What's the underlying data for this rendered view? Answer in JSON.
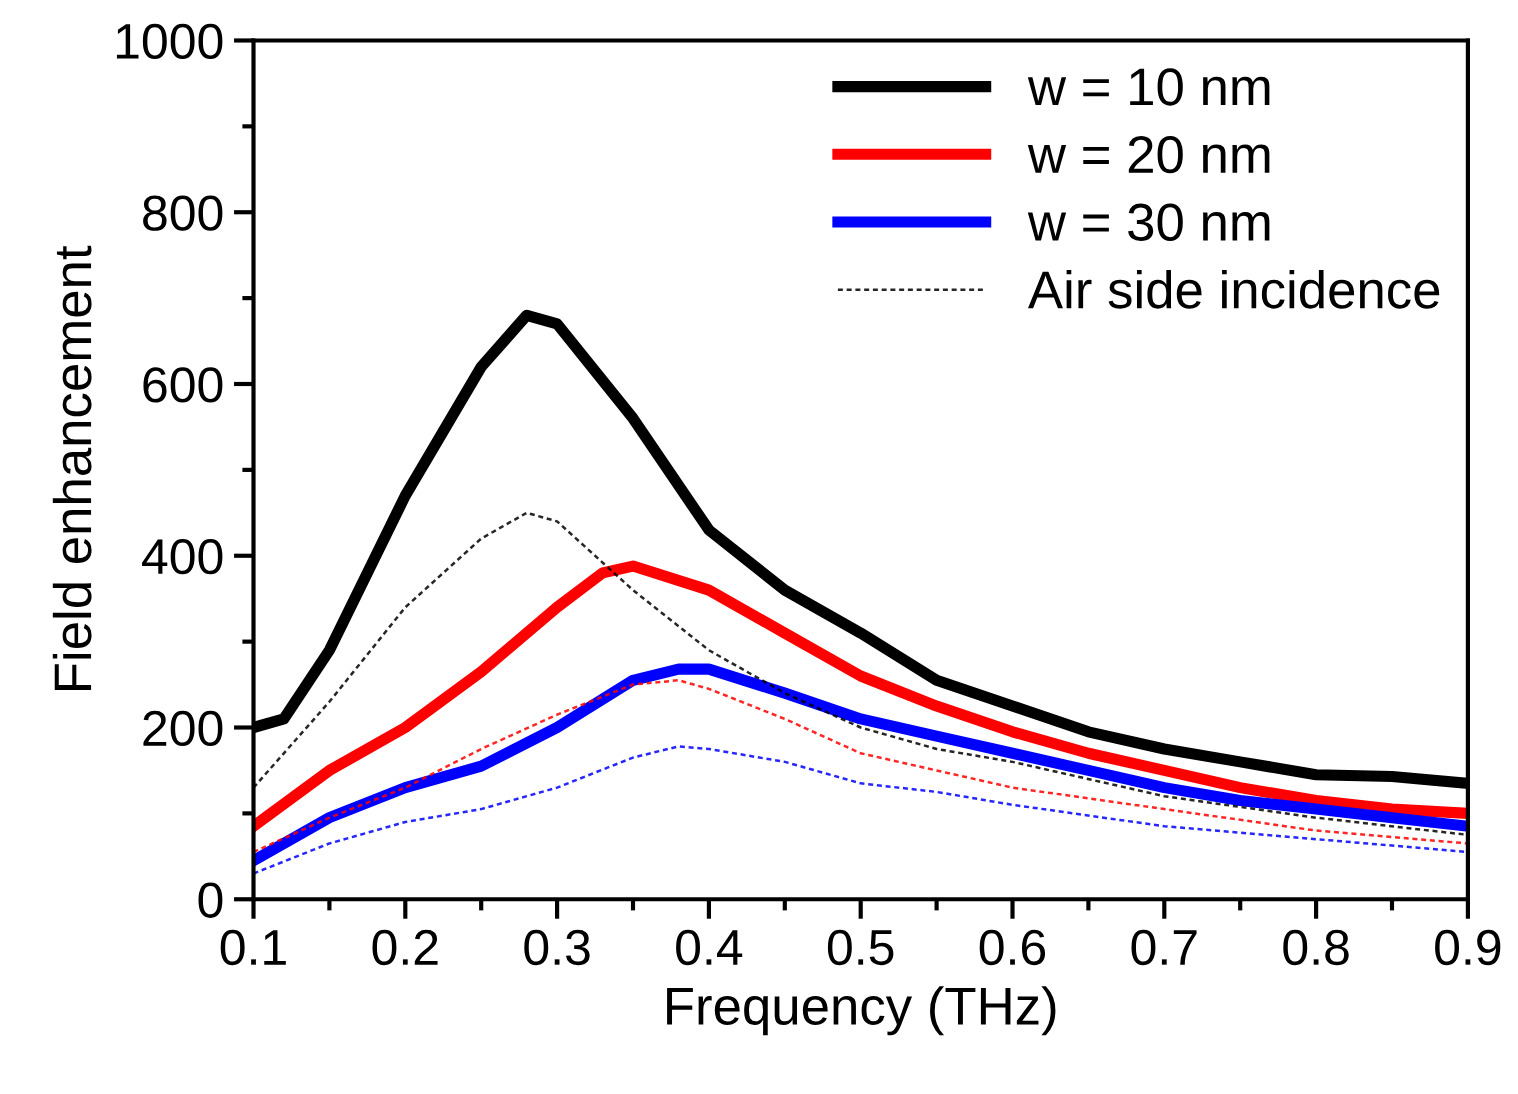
{
  "chart_data": {
    "type": "line",
    "xlabel": "Frequency (THz)",
    "ylabel": "Field enhancement",
    "xlim": [
      0.1,
      0.9
    ],
    "xticks": [
      0.1,
      0.2,
      0.3,
      0.4,
      0.5,
      0.6,
      0.7,
      0.8,
      0.9
    ],
    "ylim": [
      0,
      1000
    ],
    "yticks": [
      0,
      200,
      400,
      600,
      800,
      1000
    ],
    "grid": false,
    "legend": "top right",
    "marker": "none",
    "series": [
      {
        "name": "w = 10 nm",
        "color": "#000000",
        "line_style": "solid",
        "x": [
          0.1,
          0.12,
          0.15,
          0.2,
          0.25,
          0.28,
          0.3,
          0.35,
          0.4,
          0.45,
          0.5,
          0.55,
          0.6,
          0.65,
          0.7,
          0.75,
          0.8,
          0.85,
          0.9
        ],
        "values": [
          200,
          210,
          290,
          470,
          620,
          680,
          670,
          560,
          430,
          360,
          310,
          255,
          225,
          195,
          175,
          160,
          145,
          143,
          135
        ]
      },
      {
        "name": "w = 20 nm",
        "color": "#ff0000",
        "line_style": "solid",
        "x": [
          0.1,
          0.15,
          0.2,
          0.25,
          0.3,
          0.33,
          0.35,
          0.4,
          0.45,
          0.5,
          0.55,
          0.6,
          0.65,
          0.7,
          0.75,
          0.8,
          0.85,
          0.9
        ],
        "values": [
          85,
          150,
          200,
          265,
          340,
          380,
          388,
          360,
          310,
          260,
          225,
          195,
          170,
          150,
          130,
          115,
          105,
          100
        ]
      },
      {
        "name": "w = 30 nm",
        "color": "#0000ff",
        "line_style": "solid",
        "x": [
          0.1,
          0.15,
          0.2,
          0.25,
          0.3,
          0.35,
          0.38,
          0.4,
          0.45,
          0.5,
          0.55,
          0.6,
          0.65,
          0.7,
          0.75,
          0.8,
          0.85,
          0.9
        ],
        "values": [
          45,
          95,
          130,
          155,
          200,
          255,
          268,
          268,
          240,
          210,
          190,
          170,
          150,
          130,
          115,
          105,
          95,
          85
        ]
      },
      {
        "name": "Air side incidence",
        "color": "#000000",
        "line_style": "dotted",
        "x": [
          0.1,
          0.15,
          0.2,
          0.25,
          0.28,
          0.3,
          0.35,
          0.4,
          0.45,
          0.5,
          0.55,
          0.6,
          0.7,
          0.8,
          0.9
        ],
        "values": [
          130,
          230,
          340,
          420,
          450,
          440,
          360,
          290,
          240,
          200,
          175,
          160,
          120,
          95,
          75
        ]
      },
      {
        "color": "#ff0000",
        "line_style": "dotted",
        "x": [
          0.1,
          0.15,
          0.2,
          0.25,
          0.3,
          0.35,
          0.38,
          0.4,
          0.45,
          0.5,
          0.55,
          0.6,
          0.7,
          0.8,
          0.9
        ],
        "values": [
          55,
          95,
          130,
          175,
          215,
          250,
          255,
          245,
          210,
          170,
          150,
          130,
          105,
          80,
          65
        ]
      },
      {
        "color": "#0000ff",
        "line_style": "dotted",
        "x": [
          0.1,
          0.15,
          0.2,
          0.25,
          0.3,
          0.35,
          0.38,
          0.4,
          0.45,
          0.5,
          0.55,
          0.6,
          0.7,
          0.8,
          0.9
        ],
        "values": [
          30,
          65,
          90,
          105,
          130,
          165,
          178,
          175,
          160,
          135,
          125,
          110,
          85,
          70,
          55
        ]
      }
    ]
  }
}
